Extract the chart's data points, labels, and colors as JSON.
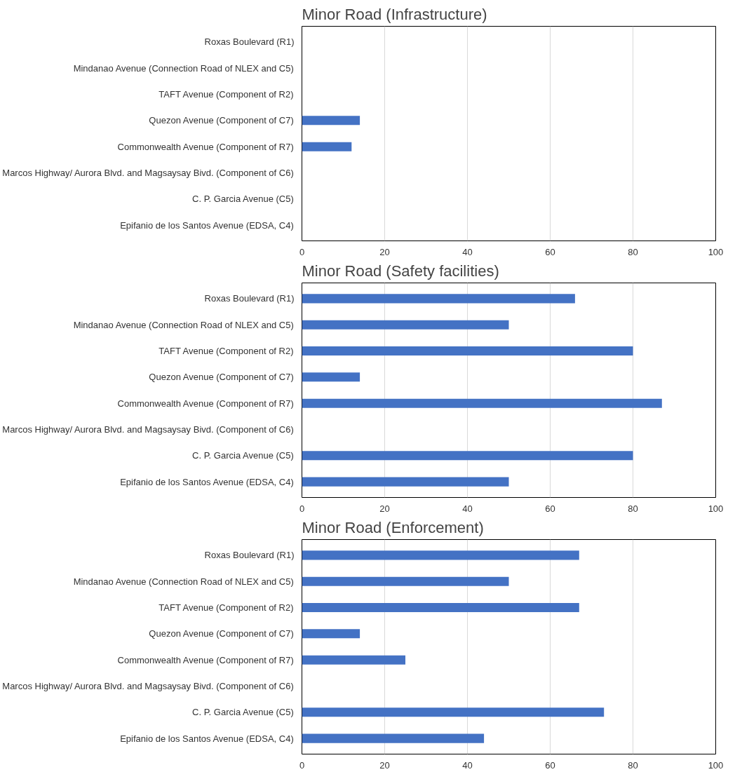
{
  "chart_data": [
    {
      "type": "bar",
      "orientation": "horizontal",
      "title": "Minor Road (Infrastructure)",
      "categories": [
        "Roxas Boulevard (R1)",
        "Mindanao Avenue (Connection Road of NLEX and C5)",
        "TAFT Avenue (Component of R2)",
        "Quezon Avenue (Component of C7)",
        "Commonwealth Avenue (Component of R7)",
        "Marcos Highway/ Aurora Blvd. and Magsaysay Bivd. (Component of C6)",
        "C. P. Garcia Avenue (C5)",
        "Epifanio de los Santos Avenue (EDSA, C4)"
      ],
      "values": [
        null,
        null,
        null,
        14,
        12,
        null,
        null,
        null
      ],
      "color": "#4472c4",
      "xlim": [
        0,
        100
      ],
      "xticks": [
        0,
        20,
        40,
        60,
        80,
        100
      ],
      "grid": "x"
    },
    {
      "type": "bar",
      "orientation": "horizontal",
      "title": "Minor Road (Safety facilities)",
      "categories": [
        "Roxas Boulevard (R1)",
        "Mindanao Avenue (Connection Road of NLEX and C5)",
        "TAFT Avenue (Component of R2)",
        "Quezon Avenue (Component of C7)",
        "Commonwealth Avenue (Component of R7)",
        "Marcos Highway/ Aurora Blvd. and Magsaysay Bivd. (Component of C6)",
        "C. P. Garcia Avenue (C5)",
        "Epifanio de los Santos Avenue (EDSA, C4)"
      ],
      "values": [
        66,
        50,
        80,
        14,
        87,
        null,
        80,
        50
      ],
      "color": "#4472c4",
      "xlim": [
        0,
        100
      ],
      "xticks": [
        0,
        20,
        40,
        60,
        80,
        100
      ],
      "grid": "x"
    },
    {
      "type": "bar",
      "orientation": "horizontal",
      "title": "Minor Road (Enforcement)",
      "categories": [
        "Roxas Boulevard (R1)",
        "Mindanao Avenue (Connection Road of NLEX and C5)",
        "TAFT Avenue (Component of R2)",
        "Quezon Avenue (Component of C7)",
        "Commonwealth Avenue (Component of R7)",
        "Marcos Highway/ Aurora Blvd. and Magsaysay Bivd. (Component of C6)",
        "C. P. Garcia Avenue (C5)",
        "Epifanio de los Santos Avenue (EDSA, C4)"
      ],
      "values": [
        67,
        50,
        67,
        14,
        25,
        null,
        73,
        44
      ],
      "color": "#4472c4",
      "xlim": [
        0,
        100
      ],
      "xticks": [
        0,
        20,
        40,
        60,
        80,
        100
      ],
      "grid": "x"
    }
  ]
}
